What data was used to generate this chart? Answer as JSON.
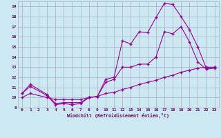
{
  "bg_color": "#cce8f0",
  "grid_color": "#aaaacc",
  "line_color": "#990099",
  "xlabel": "Windchill (Refroidissement éolien,°C)",
  "xlabel_color": "#660066",
  "tick_color": "#660066",
  "xlim": [
    -0.5,
    23.5
  ],
  "ylim": [
    9,
    19.5
  ],
  "yticks": [
    9,
    10,
    11,
    12,
    13,
    14,
    15,
    16,
    17,
    18,
    19
  ],
  "xticks": [
    0,
    1,
    2,
    3,
    4,
    5,
    6,
    7,
    8,
    9,
    10,
    11,
    12,
    13,
    14,
    15,
    16,
    17,
    18,
    19,
    20,
    21,
    22,
    23
  ],
  "line1_x": [
    0,
    1,
    3,
    4,
    5,
    6,
    7,
    8,
    9,
    10,
    11,
    12,
    13,
    14,
    15,
    16,
    17,
    18,
    19,
    20,
    21,
    22,
    23
  ],
  "line1_y": [
    10.4,
    11.3,
    10.3,
    9.4,
    9.5,
    9.5,
    9.5,
    10.0,
    10.1,
    11.8,
    12.0,
    15.6,
    15.3,
    16.5,
    16.4,
    17.9,
    19.3,
    19.2,
    18.0,
    16.7,
    15.0,
    12.9,
    13.0
  ],
  "line2_x": [
    0,
    1,
    3,
    4,
    5,
    6,
    7,
    8,
    9,
    10,
    11,
    12,
    13,
    14,
    15,
    16,
    17,
    18,
    19,
    20,
    21,
    22,
    23
  ],
  "line2_y": [
    10.4,
    11.1,
    10.2,
    9.3,
    9.4,
    9.3,
    9.4,
    10.0,
    10.1,
    11.5,
    11.8,
    13.0,
    13.0,
    13.3,
    13.3,
    14.0,
    16.5,
    16.3,
    17.0,
    15.5,
    13.5,
    12.8,
    12.9
  ],
  "line3_x": [
    0,
    1,
    3,
    4,
    5,
    6,
    7,
    8,
    9,
    10,
    11,
    12,
    13,
    14,
    15,
    16,
    17,
    18,
    19,
    20,
    21,
    22,
    23
  ],
  "line3_y": [
    10.0,
    10.4,
    10.0,
    9.8,
    9.8,
    9.8,
    9.8,
    10.0,
    10.1,
    10.4,
    10.5,
    10.8,
    11.0,
    11.3,
    11.5,
    11.7,
    12.0,
    12.2,
    12.5,
    12.7,
    12.9,
    13.0,
    13.0
  ]
}
